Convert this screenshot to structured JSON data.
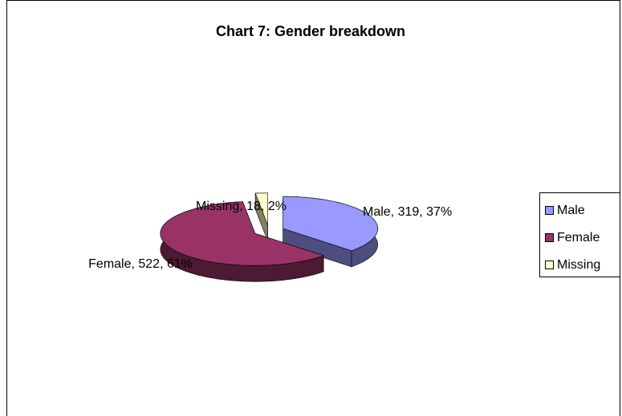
{
  "chart_data": {
    "type": "pie",
    "title": "Chart 7: Gender breakdown",
    "categories": [
      "Male",
      "Female",
      "Missing"
    ],
    "values": [
      319,
      522,
      18
    ],
    "value_labels": [
      "Male, 319, 37%",
      "Female, 522, 61%",
      "Missing, 18, 2%"
    ],
    "colors": [
      "#9999ff",
      "#993366",
      "#ffffcc"
    ],
    "legend": "right"
  }
}
